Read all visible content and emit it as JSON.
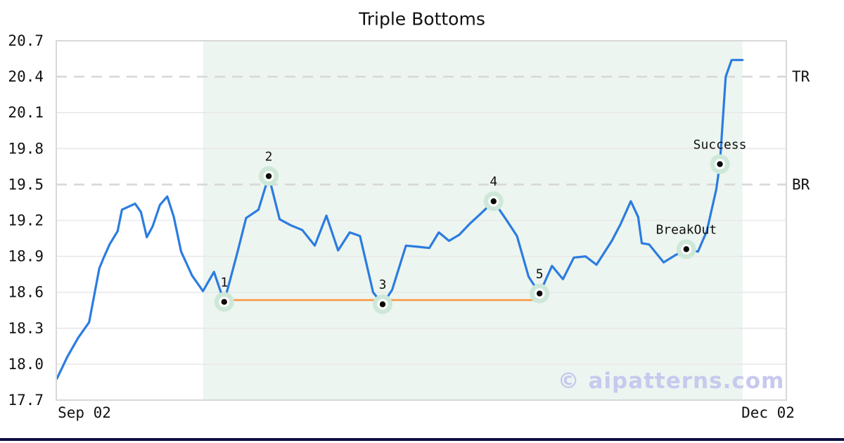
{
  "chart_data": {
    "type": "line",
    "title": "Triple Bottoms",
    "xlabel": "",
    "ylabel": "",
    "ylim": [
      17.7,
      20.7
    ],
    "yticks": [
      17.7,
      18.0,
      18.3,
      18.6,
      18.9,
      19.2,
      19.5,
      19.8,
      20.1,
      20.4,
      20.7
    ],
    "x_tick_labels": [
      "Sep 02",
      "Dec 02"
    ],
    "grid": "horizontal",
    "legend": "none",
    "right_labels": [
      {
        "text": "TR",
        "value": 20.4
      },
      {
        "text": "BR",
        "value": 19.5
      }
    ],
    "dashed_levels": [
      20.4,
      19.5
    ],
    "pattern_region": {
      "x_frac_start": 0.201,
      "x_frac_end": 0.94
    },
    "support_line": {
      "value": 18.535,
      "from_frac": 0.23,
      "to_frac": 0.662
    },
    "series": {
      "name": "price",
      "x_frac": [
        0.001,
        0.015,
        0.03,
        0.045,
        0.059,
        0.065,
        0.073,
        0.084,
        0.09,
        0.108,
        0.116,
        0.124,
        0.132,
        0.142,
        0.152,
        0.161,
        0.171,
        0.186,
        0.201,
        0.216,
        0.23,
        0.238,
        0.248,
        0.26,
        0.277,
        0.291,
        0.306,
        0.321,
        0.337,
        0.354,
        0.37,
        0.386,
        0.402,
        0.416,
        0.434,
        0.447,
        0.46,
        0.479,
        0.496,
        0.511,
        0.524,
        0.538,
        0.552,
        0.566,
        0.582,
        0.599,
        0.616,
        0.631,
        0.647,
        0.662,
        0.679,
        0.694,
        0.709,
        0.725,
        0.74,
        0.761,
        0.773,
        0.787,
        0.797,
        0.802,
        0.812,
        0.832,
        0.848,
        0.863,
        0.879,
        0.891,
        0.904,
        0.909,
        0.917,
        0.925,
        0.94
      ],
      "values": [
        17.88,
        18.06,
        18.22,
        18.35,
        18.8,
        18.89,
        19.0,
        19.11,
        19.29,
        19.34,
        19.27,
        19.06,
        19.15,
        19.33,
        19.4,
        19.23,
        18.94,
        18.74,
        18.61,
        18.77,
        18.52,
        18.7,
        18.93,
        19.22,
        19.29,
        19.57,
        19.21,
        19.16,
        19.12,
        18.99,
        19.24,
        18.95,
        19.1,
        19.07,
        18.6,
        18.5,
        18.62,
        18.99,
        18.98,
        18.97,
        19.1,
        19.03,
        19.08,
        19.17,
        19.26,
        19.36,
        19.21,
        19.07,
        18.73,
        18.59,
        18.82,
        18.71,
        18.89,
        18.9,
        18.83,
        19.03,
        19.17,
        19.36,
        19.23,
        19.01,
        19.0,
        18.85,
        18.91,
        18.96,
        18.94,
        19.11,
        19.46,
        19.67,
        20.4,
        20.54,
        20.54
      ]
    },
    "markers": [
      {
        "label": "1",
        "index": 20,
        "value": 18.52
      },
      {
        "label": "2",
        "index": 25,
        "value": 19.57
      },
      {
        "label": "3",
        "index": 35,
        "value": 18.5
      },
      {
        "label": "4",
        "index": 45,
        "value": 19.36
      },
      {
        "label": "5",
        "index": 49,
        "value": 18.59
      },
      {
        "label": "BreakOut",
        "index": 63,
        "value": 18.96
      },
      {
        "label": "Success",
        "index": 67,
        "value": 19.67
      }
    ],
    "watermark": "© aipatterns.com",
    "colors": {
      "line": "#2b7ce0",
      "support_line": "#f89c4f",
      "marker_halo": "#cde8d8",
      "marker_ring": "#ffffff",
      "marker_dot": "#0a0a0a",
      "region_fill": "#edf5f0",
      "gridline": "#e8e8e8",
      "dashed_line": "#d8d8d8",
      "plot_border": "#d8d8d8",
      "text": "#111111",
      "watermark": "#c7c9ee",
      "footer_bar": "#0e0e46",
      "background": "#ffffff"
    }
  }
}
